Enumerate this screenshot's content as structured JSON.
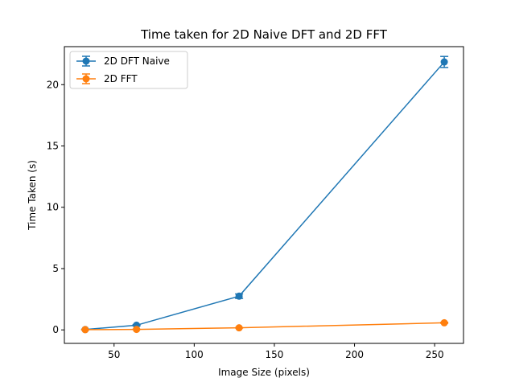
{
  "chart_data": {
    "type": "line",
    "title": "Time taken for 2D Naive DFT and 2D FFT",
    "xlabel": "Image Size (pixels)",
    "ylabel": "Time Taken (s)",
    "xlim": [
      19,
      268
    ],
    "ylim": [
      -1.1,
      23.1
    ],
    "xticks": [
      50,
      100,
      150,
      200,
      250
    ],
    "yticks": [
      0,
      5,
      10,
      15,
      20
    ],
    "grid": false,
    "legend_position": "top-left",
    "series": [
      {
        "name": "2D DFT Naive",
        "color": "#1f77b4",
        "x": [
          32,
          64,
          128,
          256
        ],
        "y": [
          0.03,
          0.38,
          2.75,
          21.85
        ],
        "yerr": [
          0.02,
          0.05,
          0.18,
          0.45
        ]
      },
      {
        "name": "2D FFT",
        "color": "#ff7f0e",
        "x": [
          32,
          64,
          128,
          256
        ],
        "y": [
          0.02,
          0.04,
          0.17,
          0.58
        ],
        "yerr": [
          0.005,
          0.01,
          0.02,
          0.04
        ]
      }
    ]
  }
}
